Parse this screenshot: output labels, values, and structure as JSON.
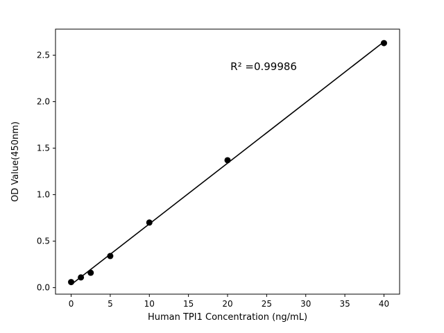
{
  "figure": {
    "background": "#ffffff"
  },
  "chart_data": {
    "type": "scatter",
    "title": "",
    "xlabel": "Human TPI1 Concentration (ng/mL)",
    "ylabel": "OD Value(450nm)",
    "x": [
      0,
      1.25,
      2.5,
      5,
      10,
      20,
      40
    ],
    "y": [
      0.06,
      0.11,
      0.16,
      0.34,
      0.7,
      1.37,
      2.63
    ],
    "annotation": {
      "text": "R² =0.99986",
      "fx": 0.605,
      "fy": 0.155
    },
    "xlim": [
      -2,
      42
    ],
    "ylim": [
      -0.07,
      2.78
    ],
    "xticks": [
      0,
      5,
      10,
      15,
      20,
      25,
      30,
      35,
      40
    ],
    "yticks": [
      0.0,
      0.5,
      1.0,
      1.5,
      2.0,
      2.5
    ],
    "grid": false,
    "legend": null,
    "fit_line": true,
    "marker_color": "#000000",
    "line_color": "#000000",
    "axis_color": "#000000",
    "tick_font_size": 12,
    "label_font_size": 13,
    "annotation_font_size": 15
  }
}
